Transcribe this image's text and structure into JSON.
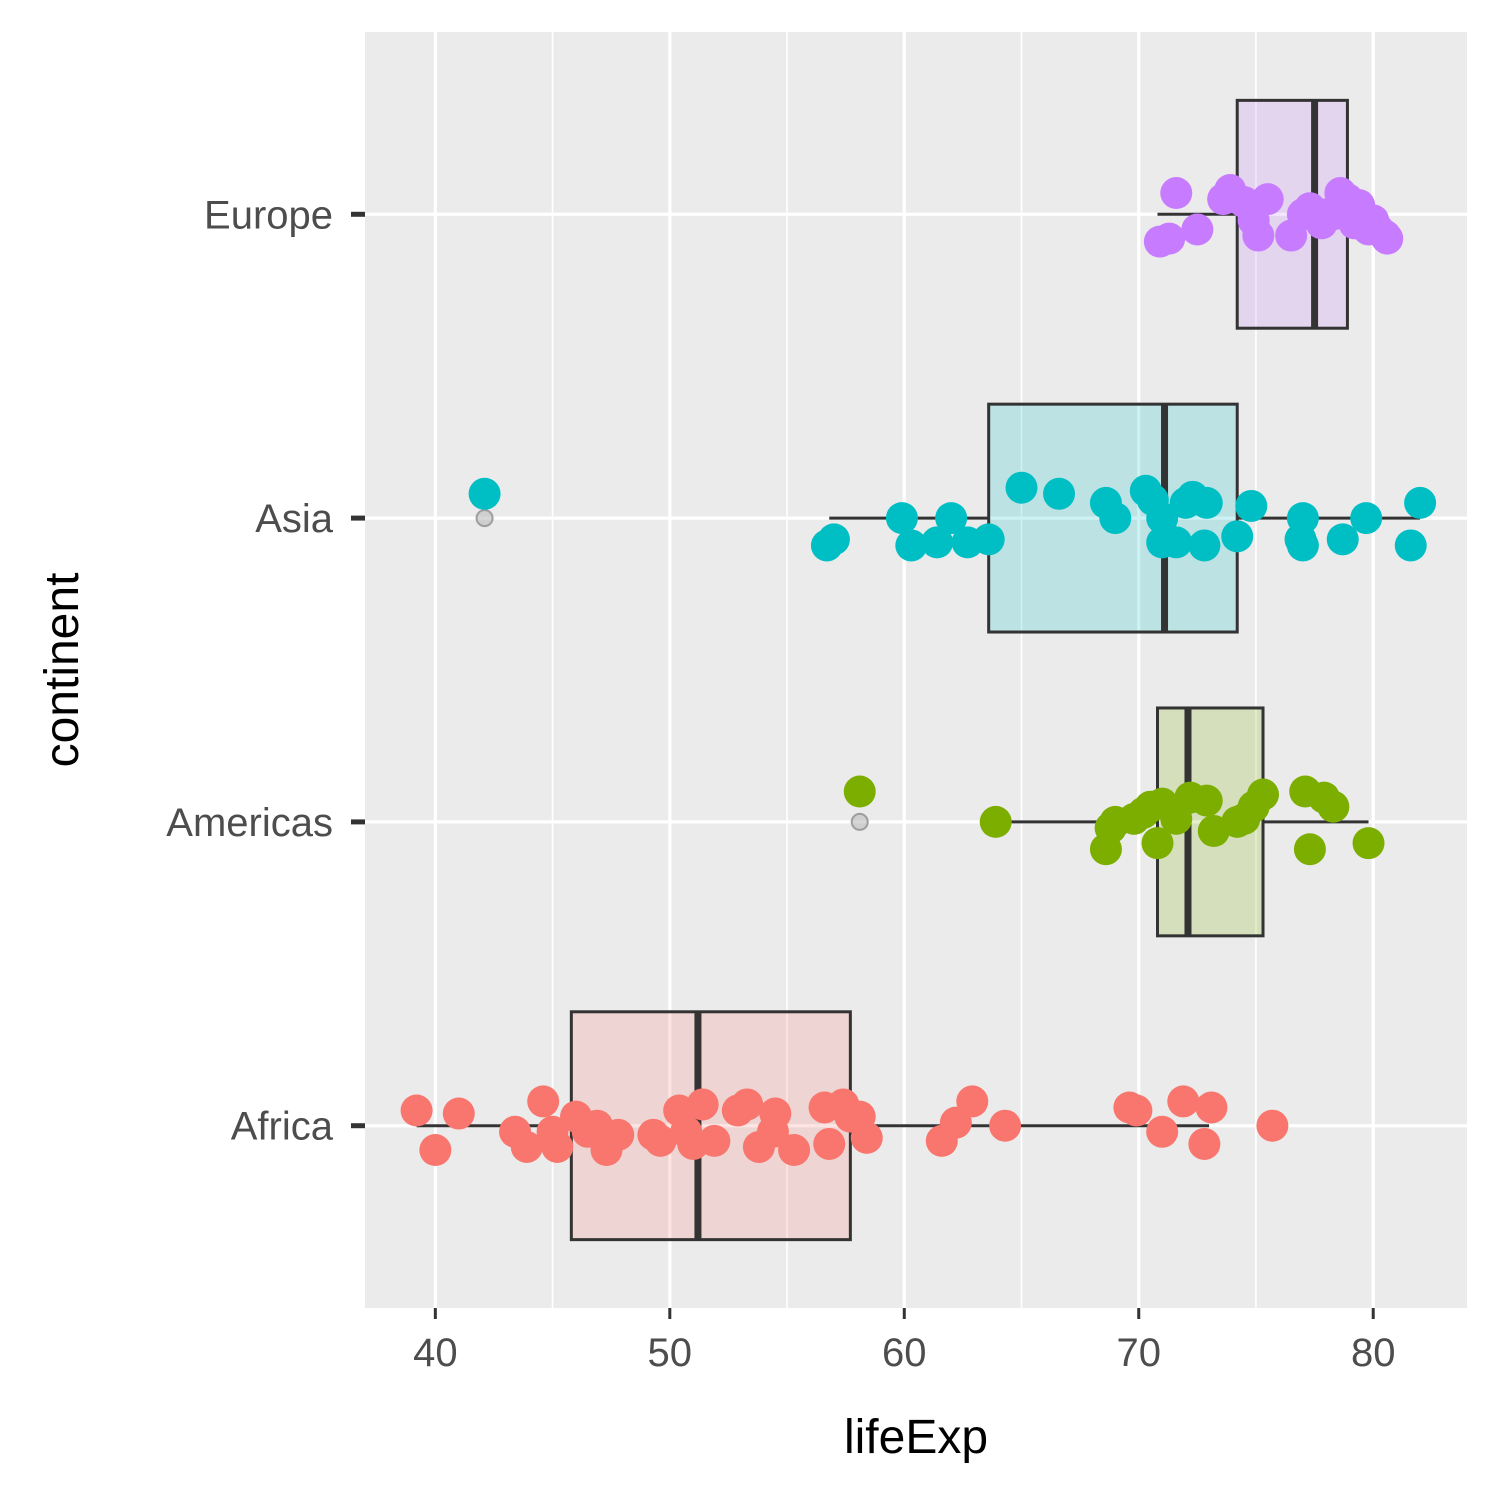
{
  "chart_data": {
    "type": "boxplot",
    "orientation": "horizontal",
    "xlabel": "lifeExp",
    "ylabel": "continent",
    "xlim": [
      37,
      84
    ],
    "xticks": [
      40,
      50,
      60,
      70,
      80
    ],
    "xtick_labels": [
      "40",
      "50",
      "60",
      "70",
      "80"
    ],
    "categories": [
      "Africa",
      "Americas",
      "Asia",
      "Europe"
    ],
    "grid": true,
    "legend": "none",
    "colors": {
      "panel": "#ebebeb",
      "grid": "#ffffff",
      "box_line": "#333333",
      "outlier": "#bdbdbd",
      "Africa": "#F8766D",
      "Americas": "#7CAE00",
      "Asia": "#00BFC4",
      "Europe": "#C77CFF"
    },
    "boxes": [
      {
        "name": "Africa",
        "min": 39.2,
        "q1": 45.8,
        "median": 51.2,
        "q3": 57.7,
        "max": 73.0,
        "outliers": [
          75.7
        ]
      },
      {
        "name": "Americas",
        "min": 63.9,
        "q1": 70.8,
        "median": 72.1,
        "q3": 75.3,
        "max": 79.8,
        "outliers": [
          58.1
        ]
      },
      {
        "name": "Asia",
        "min": 56.8,
        "q1": 63.6,
        "median": 71.1,
        "q3": 74.2,
        "max": 82.0,
        "outliers": [
          42.1
        ]
      },
      {
        "name": "Europe",
        "min": 70.8,
        "q1": 74.2,
        "median": 77.5,
        "q3": 78.9,
        "max": 80.6,
        "outliers": []
      }
    ],
    "points": {
      "Africa": [
        [
          39.2,
          0.05
        ],
        [
          41.0,
          0.04
        ],
        [
          40.0,
          -0.08
        ],
        [
          43.4,
          -0.02
        ],
        [
          43.9,
          -0.07
        ],
        [
          44.6,
          0.08
        ],
        [
          45.0,
          -0.02
        ],
        [
          45.2,
          -0.07
        ],
        [
          46.0,
          0.03
        ],
        [
          46.5,
          -0.02
        ],
        [
          46.9,
          0.0
        ],
        [
          47.3,
          -0.08
        ],
        [
          47.8,
          -0.03
        ],
        [
          49.3,
          -0.03
        ],
        [
          49.6,
          -0.05
        ],
        [
          50.4,
          0.05
        ],
        [
          50.7,
          -0.02
        ],
        [
          51.0,
          -0.06
        ],
        [
          51.4,
          0.07
        ],
        [
          51.9,
          -0.05
        ],
        [
          52.9,
          0.05
        ],
        [
          53.3,
          0.07
        ],
        [
          53.8,
          -0.07
        ],
        [
          54.5,
          0.04
        ],
        [
          54.4,
          -0.02
        ],
        [
          55.3,
          -0.08
        ],
        [
          56.6,
          0.06
        ],
        [
          56.8,
          -0.06
        ],
        [
          57.4,
          0.07
        ],
        [
          57.7,
          0.03
        ],
        [
          58.1,
          0.03
        ],
        [
          58.4,
          -0.04
        ],
        [
          61.6,
          -0.05
        ],
        [
          62.2,
          0.01
        ],
        [
          62.9,
          0.08
        ],
        [
          64.3,
          0.0
        ],
        [
          69.6,
          0.06
        ],
        [
          69.9,
          0.05
        ],
        [
          71.0,
          -0.02
        ],
        [
          71.9,
          0.08
        ],
        [
          72.8,
          -0.06
        ],
        [
          73.1,
          0.06
        ],
        [
          75.7,
          0.0
        ]
      ],
      "Americas": [
        [
          58.1,
          0.1
        ],
        [
          63.9,
          0.0
        ],
        [
          68.6,
          -0.09
        ],
        [
          68.8,
          -0.02
        ],
        [
          69.0,
          0.0
        ],
        [
          69.8,
          0.01
        ],
        [
          70.2,
          0.03
        ],
        [
          70.5,
          0.05
        ],
        [
          70.8,
          -0.07
        ],
        [
          71.0,
          0.06
        ],
        [
          71.6,
          0.01
        ],
        [
          72.2,
          0.08
        ],
        [
          72.9,
          0.07
        ],
        [
          73.2,
          -0.03
        ],
        [
          74.2,
          0.0
        ],
        [
          74.5,
          0.01
        ],
        [
          74.9,
          0.05
        ],
        [
          75.3,
          0.09
        ],
        [
          77.1,
          0.1
        ],
        [
          77.3,
          -0.09
        ],
        [
          77.9,
          0.08
        ],
        [
          78.3,
          0.05
        ],
        [
          79.8,
          -0.07
        ]
      ],
      "Asia": [
        [
          42.1,
          0.08
        ],
        [
          56.7,
          -0.09
        ],
        [
          57.0,
          -0.07
        ],
        [
          59.9,
          0.0
        ],
        [
          60.3,
          -0.09
        ],
        [
          61.4,
          -0.08
        ],
        [
          62.0,
          0.0
        ],
        [
          62.7,
          -0.08
        ],
        [
          63.6,
          -0.07
        ],
        [
          65.0,
          0.1
        ],
        [
          66.6,
          0.08
        ],
        [
          68.6,
          0.05
        ],
        [
          69.0,
          0.0
        ],
        [
          70.3,
          0.09
        ],
        [
          70.6,
          0.06
        ],
        [
          71.0,
          0.0
        ],
        [
          71.0,
          -0.08
        ],
        [
          71.6,
          -0.08
        ],
        [
          72.0,
          0.05
        ],
        [
          72.3,
          0.07
        ],
        [
          72.8,
          -0.09
        ],
        [
          72.9,
          0.05
        ],
        [
          74.2,
          -0.06
        ],
        [
          74.8,
          0.04
        ],
        [
          76.9,
          -0.07
        ],
        [
          77.0,
          0.0
        ],
        [
          77.0,
          -0.09
        ],
        [
          78.7,
          -0.07
        ],
        [
          79.7,
          0.0
        ],
        [
          81.6,
          -0.09
        ],
        [
          82.0,
          0.05
        ]
      ],
      "Europe": [
        [
          70.9,
          -0.09
        ],
        [
          71.3,
          -0.08
        ],
        [
          71.6,
          0.07
        ],
        [
          72.5,
          -0.05
        ],
        [
          73.6,
          0.05
        ],
        [
          73.9,
          0.08
        ],
        [
          74.5,
          0.04
        ],
        [
          74.9,
          -0.02
        ],
        [
          75.1,
          -0.07
        ],
        [
          75.5,
          0.05
        ],
        [
          76.5,
          -0.07
        ],
        [
          77.0,
          0.0
        ],
        [
          77.3,
          0.02
        ],
        [
          77.8,
          -0.03
        ],
        [
          78.0,
          0.0
        ],
        [
          78.3,
          0.0
        ],
        [
          78.6,
          0.07
        ],
        [
          78.9,
          0.05
        ],
        [
          79.2,
          -0.03
        ],
        [
          79.4,
          0.03
        ],
        [
          79.8,
          -0.05
        ],
        [
          80.0,
          -0.02
        ],
        [
          80.2,
          -0.05
        ],
        [
          80.5,
          -0.07
        ],
        [
          80.6,
          -0.08
        ]
      ]
    }
  }
}
